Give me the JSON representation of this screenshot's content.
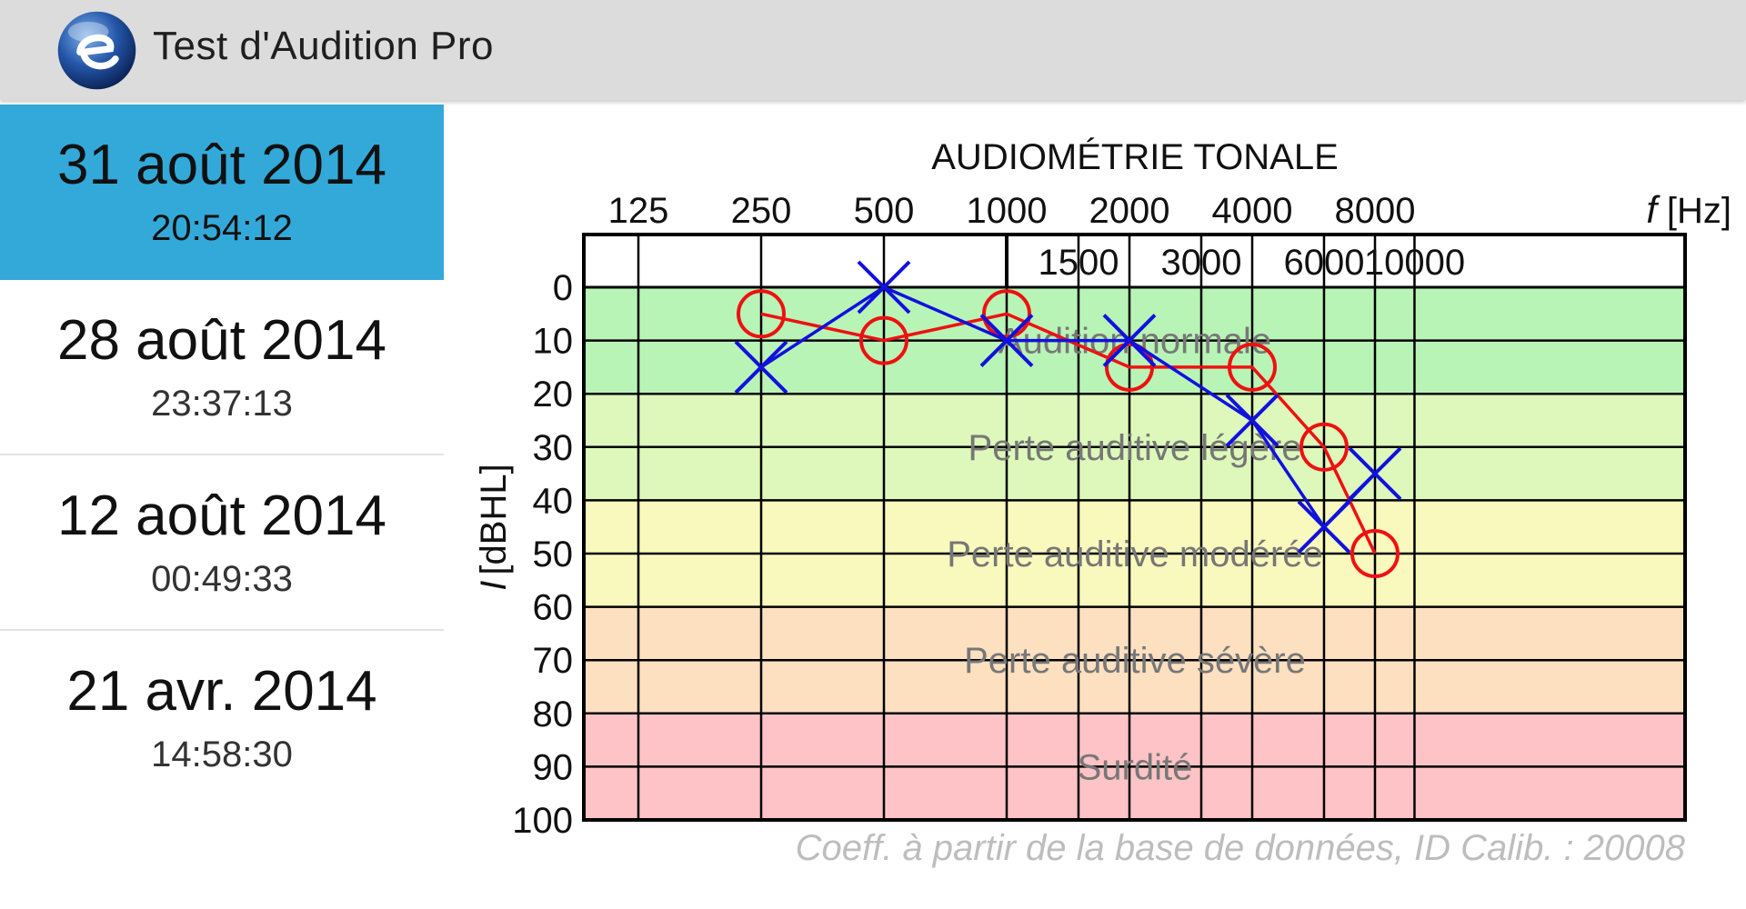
{
  "app": {
    "title": "Test d'Audition Pro",
    "logo": "e-logo-icon",
    "colors": {
      "appbar": "#dcdcdc",
      "selected": "#33a9d9",
      "right_ear": "#ee1111",
      "left_ear": "#1111dd"
    }
  },
  "sessions": [
    {
      "date": "31 août 2014",
      "time": "20:54:12",
      "selected": true
    },
    {
      "date": "28 août 2014",
      "time": "23:37:13",
      "selected": false
    },
    {
      "date": "12 août 2014",
      "time": "00:49:33",
      "selected": false
    },
    {
      "date": "21 avr. 2014",
      "time": "14:58:30",
      "selected": false
    }
  ],
  "chart_data": {
    "type": "line",
    "title": "AUDIOMÉTRIE TONALE",
    "x_scale": "log",
    "x_ticks_major": [
      125,
      250,
      500,
      1000,
      2000,
      4000,
      8000
    ],
    "x_ticks_minor": [
      1500,
      3000,
      6000,
      10000
    ],
    "xlabel_symbol": "f",
    "xlabel_unit": "[Hz]",
    "ylabel_symbol": "I",
    "ylabel_unit": "[dBHL]",
    "ylim": [
      0,
      100
    ],
    "y_ticks": [
      0,
      10,
      20,
      30,
      40,
      50,
      60,
      70,
      80,
      90,
      100
    ],
    "y_inverted": true,
    "zones": [
      {
        "label": "Audition normale",
        "from": 0,
        "to": 20,
        "color": "#b9f4b7"
      },
      {
        "label": "Perte auditive légère",
        "from": 20,
        "to": 40,
        "color": "#ddf8ba"
      },
      {
        "label": "Perte auditive modérée",
        "from": 40,
        "to": 60,
        "color": "#f9f9bd"
      },
      {
        "label": "Perte auditive sévère",
        "from": 60,
        "to": 80,
        "color": "#fde0c0"
      },
      {
        "label": "Surdité",
        "from": 80,
        "to": 100,
        "color": "#fec3c6"
      }
    ],
    "series": [
      {
        "marker": "circle",
        "color": "#ee1111",
        "x": [
          250,
          500,
          1000,
          2000,
          4000,
          6000,
          8000
        ],
        "values": [
          5,
          10,
          5,
          15,
          15,
          30,
          50
        ]
      },
      {
        "marker": "cross",
        "color": "#1111dd",
        "x": [
          250,
          500,
          1000,
          2000,
          4000,
          6000,
          8000
        ],
        "values": [
          15,
          0,
          10,
          10,
          25,
          45,
          35
        ]
      }
    ],
    "footnote": "Coeff. à partir de la base de données, ID Calib. : 20008"
  }
}
